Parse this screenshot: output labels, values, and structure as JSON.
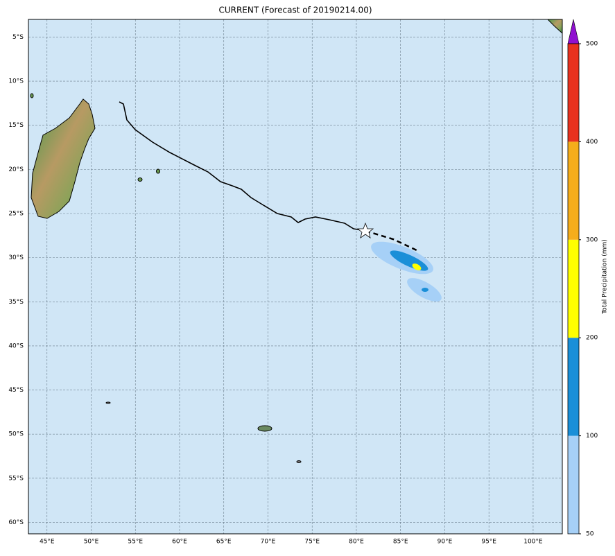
{
  "map": {
    "title": "CURRENT (Forecast of 20190214.00)",
    "lon_extent": [
      42.9,
      103.3
    ],
    "lat_extent": [
      -3.0,
      -61.3
    ],
    "lon_ticks": [
      {
        "value": 45,
        "label": "45°E"
      },
      {
        "value": 50,
        "label": "50°E"
      },
      {
        "value": 55,
        "label": "55°E"
      },
      {
        "value": 60,
        "label": "60°E"
      },
      {
        "value": 65,
        "label": "65°E"
      },
      {
        "value": 70,
        "label": "70°E"
      },
      {
        "value": 75,
        "label": "75°E"
      },
      {
        "value": 80,
        "label": "80°E"
      },
      {
        "value": 85,
        "label": "85°E"
      },
      {
        "value": 90,
        "label": "90°E"
      },
      {
        "value": 95,
        "label": "95°E"
      },
      {
        "value": 100,
        "label": "100°E"
      }
    ],
    "lat_ticks": [
      {
        "value": -5,
        "label": "5°S"
      },
      {
        "value": -10,
        "label": "10°S"
      },
      {
        "value": -15,
        "label": "15°S"
      },
      {
        "value": -20,
        "label": "20°S"
      },
      {
        "value": -25,
        "label": "25°S"
      },
      {
        "value": -30,
        "label": "30°S"
      },
      {
        "value": -35,
        "label": "35°S"
      },
      {
        "value": -40,
        "label": "40°S"
      },
      {
        "value": -45,
        "label": "45°S"
      },
      {
        "value": -50,
        "label": "50°S"
      },
      {
        "value": -55,
        "label": "55°S"
      },
      {
        "value": -60,
        "label": "60°S"
      }
    ],
    "colorbar": {
      "label": "Total Precipitation (mm)",
      "ticks": [
        50,
        100,
        200,
        300,
        400,
        500
      ],
      "colors": [
        "#a6d0f7",
        "#1a8fd8",
        "#ffff00",
        "#f5ad1b",
        "#e8321e"
      ],
      "extend_color": "#9010d0"
    }
  }
}
